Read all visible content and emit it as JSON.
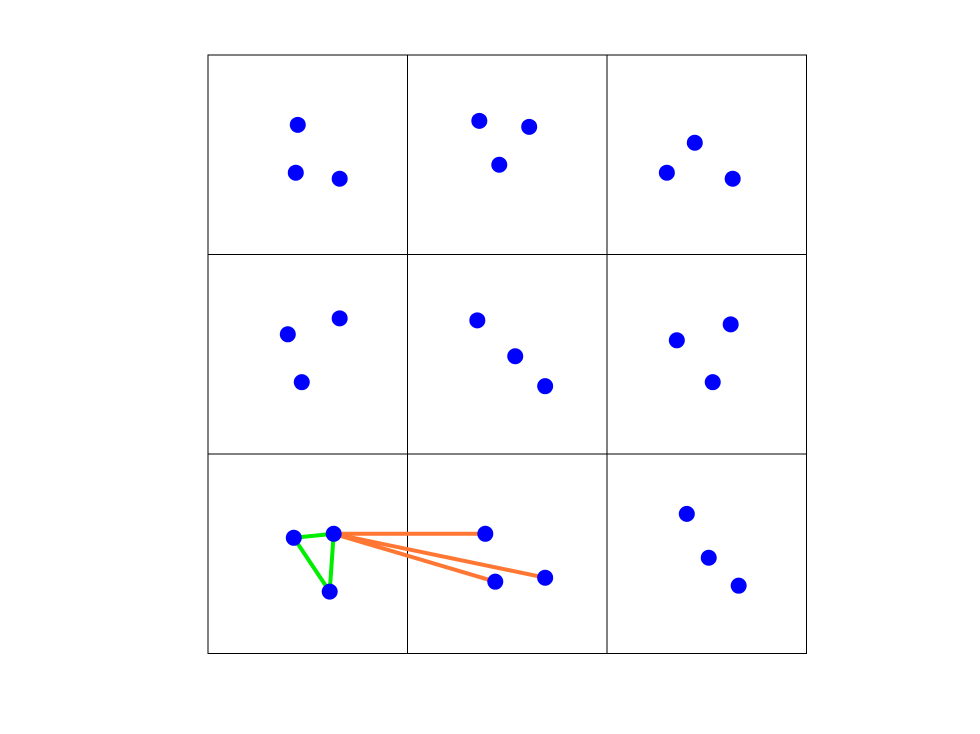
{
  "colors": {
    "background": "#ffffff",
    "grid": "#000000",
    "point": "#0000ff",
    "triangle": "#00ee00",
    "connector": "#ff7733"
  },
  "grid": {
    "rows": 3,
    "cols": 3
  },
  "cells": [
    {
      "id": "r0c0",
      "points": [
        [
          0.45,
          0.35
        ],
        [
          0.44,
          0.59
        ],
        [
          0.66,
          0.62
        ]
      ]
    },
    {
      "id": "r0c1",
      "points": [
        [
          0.36,
          0.33
        ],
        [
          0.61,
          0.36
        ],
        [
          0.46,
          0.55
        ]
      ]
    },
    {
      "id": "r0c2",
      "points": [
        [
          0.44,
          0.44
        ],
        [
          0.3,
          0.59
        ],
        [
          0.63,
          0.62
        ]
      ]
    },
    {
      "id": "r1c0",
      "points": [
        [
          0.66,
          0.32
        ],
        [
          0.4,
          0.4
        ],
        [
          0.47,
          0.64
        ]
      ]
    },
    {
      "id": "r1c1",
      "points": [
        [
          0.35,
          0.33
        ],
        [
          0.54,
          0.51
        ],
        [
          0.69,
          0.66
        ]
      ]
    },
    {
      "id": "r1c2",
      "points": [
        [
          0.62,
          0.35
        ],
        [
          0.35,
          0.43
        ],
        [
          0.53,
          0.64
        ]
      ]
    },
    {
      "id": "r2c0",
      "points": [
        [
          0.43,
          0.42
        ],
        [
          0.63,
          0.4
        ],
        [
          0.61,
          0.69
        ]
      ]
    },
    {
      "id": "r2c1",
      "points": [
        [
          0.39,
          0.4
        ],
        [
          0.44,
          0.64
        ],
        [
          0.69,
          0.62
        ]
      ]
    },
    {
      "id": "r2c2",
      "points": [
        [
          0.4,
          0.3
        ],
        [
          0.51,
          0.52
        ],
        [
          0.66,
          0.66
        ]
      ]
    }
  ],
  "triangle": {
    "cell": "r2c0",
    "vertices": [
      0,
      1,
      2
    ]
  },
  "connectors": [
    {
      "from": [
        "r2c0",
        1
      ],
      "to": [
        "r2c1",
        0
      ]
    },
    {
      "from": [
        "r2c0",
        1
      ],
      "to": [
        "r2c1",
        1
      ]
    },
    {
      "from": [
        "r2c0",
        1
      ],
      "to": [
        "r2c1",
        2
      ]
    }
  ]
}
